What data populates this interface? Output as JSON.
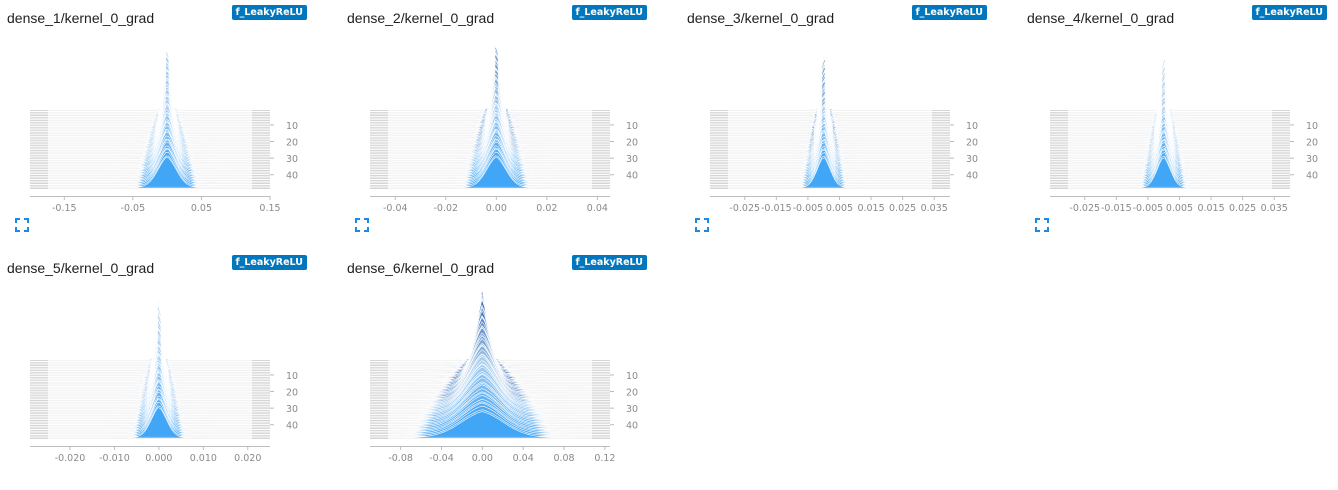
{
  "run_label": "f_LeakyReLU",
  "colors": {
    "curve_light": "#aed0ef",
    "curve_fill": "#42a5f5",
    "curve_dark": "#0d47a1",
    "badge": "#0277bd",
    "expand_icon": "#1e88e5"
  },
  "icons": {
    "expand": "expand-icon"
  },
  "chart_data": [
    {
      "type": "histogram",
      "title": "dense_1/kernel_0_grad",
      "xlim": [
        -0.2,
        0.15
      ],
      "x_ticks": [
        -0.15,
        -0.05,
        0.05,
        0.15
      ],
      "x_tick_labels": [
        "-0.15",
        "-0.05",
        "0.05",
        "0.15"
      ],
      "y_ticks": [
        10,
        20,
        30,
        40
      ],
      "y_tick_labels": [
        "10",
        "20",
        "30",
        "40"
      ],
      "steps": 48,
      "center": 0.0,
      "spread_start": 0.0035,
      "spread_end": 0.014,
      "peak_start": 1.0,
      "peak_end": 0.45,
      "darkness": 0.05
    },
    {
      "type": "histogram",
      "title": "dense_2/kernel_0_grad",
      "xlim": [
        -0.05,
        0.045
      ],
      "x_ticks": [
        -0.04,
        -0.02,
        0.0,
        0.02,
        0.04
      ],
      "x_tick_labels": [
        "-0.04",
        "-0.02",
        "0.00",
        "0.02",
        "0.04"
      ],
      "y_ticks": [
        10,
        20,
        30,
        40
      ],
      "y_tick_labels": [
        "10",
        "20",
        "30",
        "40"
      ],
      "steps": 48,
      "center": 0.0,
      "spread_start": 0.0012,
      "spread_end": 0.004,
      "peak_start": 1.0,
      "peak_end": 0.45,
      "darkness": 0.55
    },
    {
      "type": "histogram",
      "title": "dense_3/kernel_0_grad",
      "xlim": [
        -0.036,
        0.04
      ],
      "x_ticks": [
        -0.025,
        -0.015,
        -0.005,
        0.005,
        0.015,
        0.025,
        0.035
      ],
      "x_tick_labels": [
        "-0.025",
        "-0.015",
        "-0.005",
        "0.005",
        "0.015",
        "0.025",
        "0.035"
      ],
      "y_ticks": [
        10,
        20,
        30,
        40
      ],
      "y_tick_labels": [
        "10",
        "20",
        "30",
        "40"
      ],
      "steps": 48,
      "center": 0.0,
      "spread_start": 0.0006,
      "spread_end": 0.0022,
      "peak_start": 1.0,
      "peak_end": 0.45,
      "darkness": 0.8
    },
    {
      "type": "histogram",
      "title": "dense_4/kernel_0_grad",
      "xlim": [
        -0.036,
        0.04
      ],
      "x_ticks": [
        -0.025,
        -0.015,
        -0.005,
        0.005,
        0.015,
        0.025,
        0.035
      ],
      "x_tick_labels": [
        "-0.025",
        "-0.015",
        "-0.005",
        "0.005",
        "0.015",
        "0.025",
        "0.035"
      ],
      "y_ticks": [
        10,
        20,
        30,
        40
      ],
      "y_tick_labels": [
        "10",
        "20",
        "30",
        "40"
      ],
      "steps": 48,
      "center": 0.0,
      "spread_start": 0.0006,
      "spread_end": 0.0022,
      "peak_start": 1.0,
      "peak_end": 0.45,
      "darkness": 0.05
    },
    {
      "type": "histogram",
      "title": "dense_5/kernel_0_grad",
      "xlim": [
        -0.029,
        0.025
      ],
      "x_ticks": [
        -0.02,
        -0.01,
        0.0,
        0.01,
        0.02
      ],
      "x_tick_labels": [
        "-0.020",
        "-0.010",
        "0.000",
        "0.010",
        "0.020"
      ],
      "y_ticks": [
        10,
        20,
        30,
        40
      ],
      "y_tick_labels": [
        "10",
        "20",
        "30",
        "40"
      ],
      "steps": 48,
      "center": 0.0,
      "spread_start": 0.0005,
      "spread_end": 0.0018,
      "peak_start": 1.0,
      "peak_end": 0.45,
      "darkness": 0.1
    },
    {
      "type": "histogram",
      "title": "dense_6/kernel_0_grad",
      "xlim": [
        -0.11,
        0.125
      ],
      "x_ticks": [
        -0.08,
        -0.04,
        0.0,
        0.04,
        0.08,
        0.12
      ],
      "x_tick_labels": [
        "-0.08",
        "-0.04",
        "0.00",
        "0.04",
        "0.08",
        "0.12"
      ],
      "y_ticks": [
        10,
        20,
        30,
        40
      ],
      "y_tick_labels": [
        "10",
        "20",
        "30",
        "40"
      ],
      "steps": 48,
      "center": 0.0,
      "spread_start": 0.004,
      "spread_end": 0.022,
      "peak_start": 1.0,
      "peak_end": 0.38,
      "darkness": 0.95
    }
  ]
}
